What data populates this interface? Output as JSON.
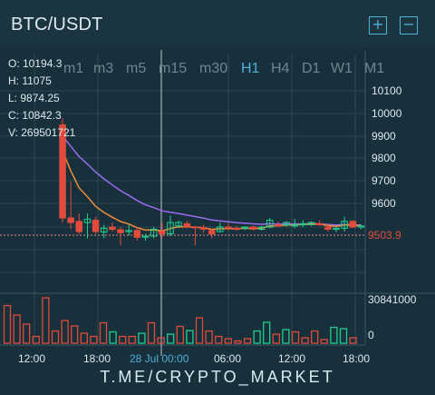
{
  "header": {
    "title": "BTC/USDT",
    "zoom_in_icon": "plus-box-icon",
    "zoom_out_icon": "minus-box-icon"
  },
  "ohlc": {
    "open": "O: 10194.3",
    "high": "H: 11075",
    "low": "L: 9874.25",
    "close": "C: 10842.3",
    "volume": "V: 269501721"
  },
  "timeframes": [
    "m1",
    "m3",
    "m5",
    "m15",
    "m30",
    "H1",
    "H4",
    "D1",
    "W1",
    "M1"
  ],
  "active_timeframe": "H1",
  "price_axis": [
    "10100",
    "10000",
    "9900",
    "9800",
    "9700",
    "9600"
  ],
  "volume_axis": [
    "30841000",
    "0"
  ],
  "time_axis": [
    "12:00",
    "18:00",
    "28 Jul 00:00",
    "06:00",
    "12:00",
    "18:00"
  ],
  "current_price": "9503.9",
  "watermark": "T.ME/CRYPTO_MARKET",
  "colors": {
    "up": "#1fd08c",
    "down": "#e24b3b",
    "ma_fast": "#f08c3a",
    "ma_slow": "#9b6cf0",
    "accent": "#4fb0d8"
  },
  "chart_data": {
    "type": "candlestick",
    "price_range": [
      9450,
      10150
    ],
    "candles": [
      {
        "o": 9950,
        "h": 9980,
        "l": 9520,
        "c": 9540
      },
      {
        "o": 9540,
        "h": 9700,
        "l": 9490,
        "c": 9520
      },
      {
        "o": 9525,
        "h": 9560,
        "l": 9470,
        "c": 9480
      },
      {
        "o": 9520,
        "h": 9560,
        "l": 9450,
        "c": 9535
      },
      {
        "o": 9530,
        "h": 9545,
        "l": 9470,
        "c": 9480
      },
      {
        "o": 9478,
        "h": 9510,
        "l": 9450,
        "c": 9495
      },
      {
        "o": 9500,
        "h": 9520,
        "l": 9480,
        "c": 9490
      },
      {
        "o": 9488,
        "h": 9500,
        "l": 9420,
        "c": 9475
      },
      {
        "o": 9480,
        "h": 9510,
        "l": 9462,
        "c": 9485
      },
      {
        "o": 9485,
        "h": 9500,
        "l": 9440,
        "c": 9455
      },
      {
        "o": 9455,
        "h": 9470,
        "l": 9440,
        "c": 9460
      },
      {
        "o": 9460,
        "h": 9500,
        "l": 9450,
        "c": 9490
      },
      {
        "o": 9480,
        "h": 9520,
        "l": 9450,
        "c": 9470
      },
      {
        "o": 9470,
        "h": 9550,
        "l": 9460,
        "c": 9520
      },
      {
        "o": 9505,
        "h": 9528,
        "l": 9495,
        "c": 9520
      },
      {
        "o": 9515,
        "h": 9528,
        "l": 9495,
        "c": 9500
      },
      {
        "o": 9500,
        "h": 9505,
        "l": 9420,
        "c": 9498
      },
      {
        "o": 9498,
        "h": 9510,
        "l": 9475,
        "c": 9490
      },
      {
        "o": 9485,
        "h": 9490,
        "l": 9450,
        "c": 9470
      },
      {
        "o": 9480,
        "h": 9520,
        "l": 9475,
        "c": 9500
      },
      {
        "o": 9500,
        "h": 9520,
        "l": 9485,
        "c": 9495
      },
      {
        "o": 9495,
        "h": 9505,
        "l": 9484,
        "c": 9490
      },
      {
        "o": 9495,
        "h": 9500,
        "l": 9486,
        "c": 9500
      },
      {
        "o": 9500,
        "h": 9505,
        "l": 9485,
        "c": 9490
      },
      {
        "o": 9490,
        "h": 9505,
        "l": 9484,
        "c": 9500
      },
      {
        "o": 9500,
        "h": 9540,
        "l": 9495,
        "c": 9530
      },
      {
        "o": 9510,
        "h": 9525,
        "l": 9500,
        "c": 9505
      },
      {
        "o": 9510,
        "h": 9525,
        "l": 9500,
        "c": 9520
      },
      {
        "o": 9505,
        "h": 9535,
        "l": 9495,
        "c": 9510
      },
      {
        "o": 9510,
        "h": 9530,
        "l": 9500,
        "c": 9515
      },
      {
        "o": 9510,
        "h": 9525,
        "l": 9505,
        "c": 9520
      },
      {
        "o": 9515,
        "h": 9530,
        "l": 9505,
        "c": 9510
      },
      {
        "o": 9500,
        "h": 9515,
        "l": 9480,
        "c": 9490
      },
      {
        "o": 9490,
        "h": 9500,
        "l": 9478,
        "c": 9495
      },
      {
        "o": 9495,
        "h": 9545,
        "l": 9480,
        "c": 9525
      },
      {
        "o": 9525,
        "h": 9530,
        "l": 9495,
        "c": 9500
      },
      {
        "o": 9500,
        "h": 9510,
        "l": 9490,
        "c": 9505
      }
    ],
    "volumes": [
      {
        "v": 0.83,
        "up": false
      },
      {
        "v": 0.62,
        "up": false
      },
      {
        "v": 0.42,
        "up": false
      },
      {
        "v": 0.15,
        "up": false
      },
      {
        "v": 1.0,
        "up": false
      },
      {
        "v": 0.27,
        "up": false
      },
      {
        "v": 0.5,
        "up": false
      },
      {
        "v": 0.38,
        "up": false
      },
      {
        "v": 0.22,
        "up": false
      },
      {
        "v": 0.15,
        "up": false
      },
      {
        "v": 0.45,
        "up": false
      },
      {
        "v": 0.25,
        "up": true
      },
      {
        "v": 0.15,
        "up": false
      },
      {
        "v": 0.15,
        "up": false
      },
      {
        "v": 0.22,
        "up": true
      },
      {
        "v": 0.45,
        "up": false
      },
      {
        "v": 0.12,
        "up": false
      },
      {
        "v": 0.2,
        "up": true
      },
      {
        "v": 0.37,
        "up": false
      },
      {
        "v": 0.28,
        "up": true
      },
      {
        "v": 0.56,
        "up": false
      },
      {
        "v": 0.27,
        "up": false
      },
      {
        "v": 0.15,
        "up": false
      },
      {
        "v": 0.1,
        "up": false
      },
      {
        "v": 0.05,
        "up": false
      },
      {
        "v": 0.1,
        "up": false
      },
      {
        "v": 0.27,
        "up": true
      },
      {
        "v": 0.46,
        "up": true
      },
      {
        "v": 0.2,
        "up": false
      },
      {
        "v": 0.3,
        "up": true
      },
      {
        "v": 0.25,
        "up": false
      },
      {
        "v": 0.12,
        "up": false
      },
      {
        "v": 0.27,
        "up": false
      },
      {
        "v": 0.08,
        "up": false
      },
      {
        "v": 0.35,
        "up": true
      },
      {
        "v": 0.32,
        "up": true
      },
      {
        "v": 0.12,
        "up": false
      }
    ]
  }
}
